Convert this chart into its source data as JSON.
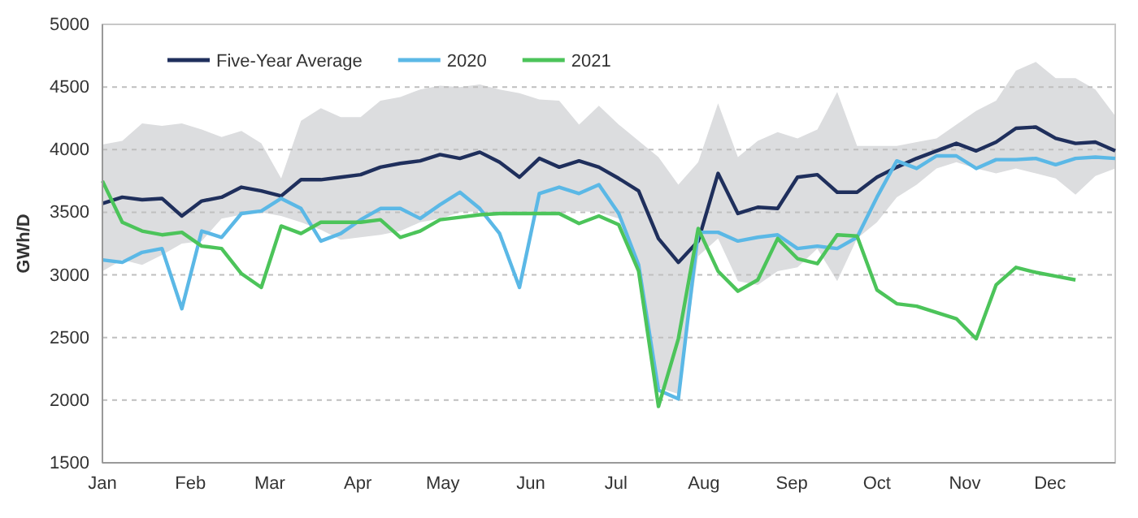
{
  "chart_data": {
    "type": "line",
    "ylabel": "GWh/D",
    "x": [
      "--01-01",
      "--01-08",
      "--01-15",
      "--01-22",
      "--01-29",
      "--02-05",
      "--02-12",
      "--02-19",
      "--02-26",
      "--03-05",
      "--03-12",
      "--03-19",
      "--03-26",
      "--04-02",
      "--04-09",
      "--04-16",
      "--04-23",
      "--04-30",
      "--05-07",
      "--05-14",
      "--05-21",
      "--05-28",
      "--06-04",
      "--06-11",
      "--06-18",
      "--06-25",
      "--07-02",
      "--07-09",
      "--07-16",
      "--07-23",
      "--07-30",
      "--08-06",
      "--08-13",
      "--08-20",
      "--08-27",
      "--09-03",
      "--09-10",
      "--09-17",
      "--09-24",
      "--10-01",
      "--10-08",
      "--10-15",
      "--10-22",
      "--10-29",
      "--11-05",
      "--11-12",
      "--11-19",
      "--11-26",
      "--12-03",
      "--12-10",
      "--12-17",
      "--12-24"
    ],
    "series": [
      {
        "name": "Five-Year Average",
        "color": "#1f2f5c",
        "values": [
          3570,
          3620,
          3600,
          3610,
          3470,
          3590,
          3620,
          3700,
          3670,
          3630,
          3760,
          3760,
          3780,
          3800,
          3860,
          3890,
          3910,
          3960,
          3930,
          3980,
          3900,
          3780,
          3930,
          3860,
          3910,
          3860,
          3770,
          3670,
          3290,
          3100,
          3270,
          3810,
          3490,
          3540,
          3530,
          3780,
          3800,
          3660,
          3660,
          3780,
          3860,
          3930,
          3990,
          4050,
          3990,
          4060,
          4170,
          4180,
          4090,
          4050,
          4060,
          3990
        ],
        "lower": [
          3030,
          3120,
          3080,
          3160,
          3250,
          3270,
          3450,
          3480,
          3500,
          3470,
          3420,
          3360,
          3280,
          3300,
          3320,
          3350,
          3420,
          3450,
          3500,
          3510,
          3490,
          3490,
          3480,
          3500,
          3510,
          3500,
          3450,
          3000,
          2100,
          2050,
          3150,
          3290,
          2950,
          2920,
          3030,
          3060,
          3210,
          2950,
          3290,
          3420,
          3620,
          3720,
          3850,
          3900,
          3850,
          3810,
          3850,
          3810,
          3770,
          3640,
          3790,
          3850
        ],
        "upper": [
          4040,
          4070,
          4210,
          4190,
          4210,
          4160,
          4100,
          4150,
          4050,
          3770,
          4230,
          4330,
          4260,
          4260,
          4390,
          4420,
          4480,
          4510,
          4500,
          4520,
          4480,
          4450,
          4400,
          4390,
          4200,
          4350,
          4200,
          4070,
          3940,
          3720,
          3900,
          4370,
          3940,
          4070,
          4140,
          4090,
          4160,
          4460,
          4030,
          4030,
          4030,
          4060,
          4090,
          4200,
          4310,
          4390,
          4630,
          4700,
          4570,
          4570,
          4480,
          4270
        ]
      },
      {
        "name": "2020",
        "color": "#5bb8e6",
        "values": [
          3120,
          3100,
          3180,
          3210,
          2730,
          3350,
          3300,
          3490,
          3510,
          3610,
          3530,
          3270,
          3330,
          3440,
          3530,
          3530,
          3450,
          3560,
          3660,
          3530,
          3330,
          2900,
          3650,
          3700,
          3650,
          3720,
          3490,
          3080,
          2080,
          2010,
          3340,
          3340,
          3270,
          3300,
          3320,
          3210,
          3230,
          3210,
          3300,
          3620,
          3910,
          3850,
          3950,
          3950,
          3850,
          3920,
          3920,
          3930,
          3880,
          3930,
          3940,
          3930
        ]
      },
      {
        "name": "2021",
        "color": "#4cc45a",
        "values": [
          3750,
          3420,
          3350,
          3320,
          3340,
          3230,
          3210,
          3010,
          2900,
          3390,
          3330,
          3420,
          3420,
          3420,
          3440,
          3300,
          3350,
          3440,
          3460,
          3480,
          3490,
          3490,
          3490,
          3490,
          3410,
          3470,
          3400,
          3030,
          1950,
          2490,
          3370,
          3030,
          2870,
          2960,
          3290,
          3130,
          3090,
          3320,
          3310,
          2880,
          2770,
          2750,
          2700,
          2650,
          2490,
          2920,
          3060,
          3020,
          2990,
          2960,
          null,
          null
        ]
      }
    ],
    "xlim": [
      "--01-01",
      "--12-24"
    ],
    "xticks": [
      {
        "value": "--01-01",
        "label": "Jan"
      },
      {
        "value": "--02-01",
        "label": "Feb"
      },
      {
        "value": "--03-01",
        "label": "Mar"
      },
      {
        "value": "--04-01",
        "label": "Apr"
      },
      {
        "value": "--05-01",
        "label": "May"
      },
      {
        "value": "--06-01",
        "label": "Jun"
      },
      {
        "value": "--07-01",
        "label": "Jul"
      },
      {
        "value": "--08-01",
        "label": "Aug"
      },
      {
        "value": "--09-01",
        "label": "Sep"
      },
      {
        "value": "--10-01",
        "label": "Oct"
      },
      {
        "value": "--11-01",
        "label": "Nov"
      },
      {
        "value": "--12-01",
        "label": "Dec"
      }
    ],
    "ylim": [
      1500,
      5000
    ],
    "yticks": [
      1500,
      2000,
      2500,
      3000,
      3500,
      4000,
      4500,
      5000
    ],
    "grid": "y",
    "legend": "top left",
    "line_style": "solid",
    "marker": "none"
  }
}
